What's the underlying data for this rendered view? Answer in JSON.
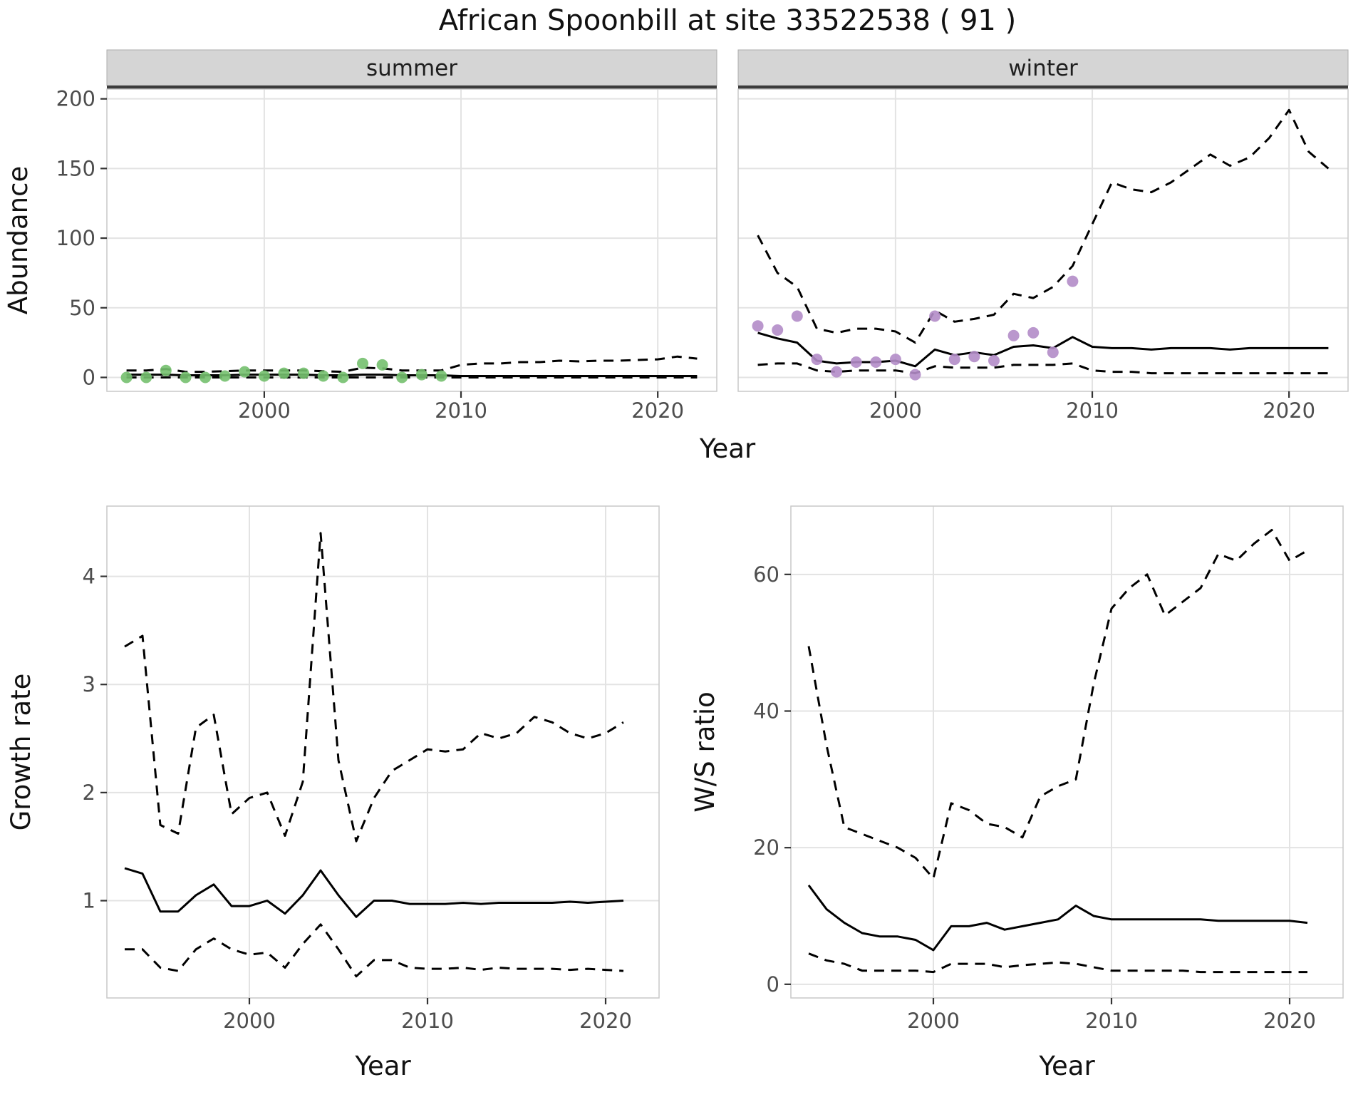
{
  "title": "African Spoonbill at site 33522538 ( 91 )",
  "colors": {
    "summer_point": "#74c06e",
    "winter_point": "#b28cc8",
    "line": "#000000",
    "grid": "#e3e3e3",
    "strip_bg": "#d5d5d5",
    "strip_underline": "#3c3c3c",
    "axis_text": "#4d4d4d",
    "panel_border": "#c9c9c9",
    "tick": "#333333"
  },
  "chart_data": [
    {
      "type": "line",
      "id": "abundance",
      "xlabel": "Year",
      "ylabel": "Abundance",
      "xlim": [
        1992,
        2023
      ],
      "ylim": [
        -10,
        207
      ],
      "xticks": [
        2000,
        2010,
        2020
      ],
      "yticks": [
        0,
        50,
        100,
        150,
        200
      ],
      "legend": "off",
      "grid": "major",
      "facets": [
        {
          "label": "summer",
          "point_color": "#74c06e",
          "fit_years": [
            1993,
            1994,
            1995,
            1996,
            1997,
            1998,
            1999,
            2000,
            2001,
            2002,
            2003,
            2004,
            2005,
            2006,
            2007,
            2008,
            2009,
            2010,
            2011,
            2012,
            2013,
            2014,
            2015,
            2016,
            2017,
            2018,
            2019,
            2020,
            2021,
            2022
          ],
          "median": [
            2,
            2,
            2,
            1.5,
            1.5,
            1.5,
            2,
            2,
            2,
            2,
            1.5,
            1.5,
            2,
            2,
            1.5,
            1.5,
            1.5,
            1,
            1,
            1,
            1,
            1,
            1,
            1,
            1,
            1,
            1,
            1,
            1,
            1
          ],
          "upper": [
            5,
            5,
            6,
            4,
            4,
            4.5,
            5,
            5,
            5,
            5,
            4.5,
            4,
            7,
            6.5,
            5,
            5,
            5,
            9,
            10,
            10,
            11,
            11,
            12,
            11.5,
            12,
            12,
            12.5,
            13,
            15,
            13.5
          ],
          "lower": [
            0,
            0,
            0,
            0,
            0,
            0,
            0,
            0,
            0,
            0,
            0,
            0,
            0,
            0,
            0,
            0,
            0,
            0,
            0,
            0,
            0,
            0,
            0,
            0,
            0,
            0,
            0,
            0,
            0,
            0
          ],
          "obs_years": [
            1993,
            1994,
            1995,
            1996,
            1997,
            1998,
            1999,
            2000,
            2001,
            2002,
            2003,
            2004,
            2005,
            2006,
            2007,
            2008,
            2009
          ],
          "obs_values": [
            0,
            0,
            5,
            0,
            0,
            1,
            4,
            1,
            3,
            3,
            1,
            0,
            10,
            9,
            0,
            2,
            1
          ]
        },
        {
          "label": "winter",
          "point_color": "#b28cc8",
          "fit_years": [
            1993,
            1994,
            1995,
            1996,
            1997,
            1998,
            1999,
            2000,
            2001,
            2002,
            2003,
            2004,
            2005,
            2006,
            2007,
            2008,
            2009,
            2010,
            2011,
            2012,
            2013,
            2014,
            2015,
            2016,
            2017,
            2018,
            2019,
            2020,
            2021,
            2022
          ],
          "median": [
            32,
            28,
            25,
            12,
            10,
            11,
            11,
            12,
            8,
            20,
            16,
            18,
            16,
            22,
            23,
            21,
            29,
            22,
            21,
            21,
            20,
            21,
            21,
            21,
            20,
            21,
            21,
            21,
            21,
            21
          ],
          "upper": [
            102,
            75,
            65,
            35,
            32,
            35,
            35,
            33,
            25,
            48,
            40,
            42,
            45,
            60,
            57,
            65,
            80,
            110,
            140,
            135,
            133,
            140,
            150,
            160,
            152,
            158,
            172,
            192,
            162,
            150
          ],
          "lower": [
            9,
            10,
            10,
            5,
            4,
            5,
            5,
            5,
            3,
            8,
            7,
            7,
            7,
            9,
            9,
            9,
            10,
            5,
            4,
            4,
            3,
            3,
            3,
            3,
            3,
            3,
            3,
            3,
            3,
            3
          ],
          "obs_years": [
            1993,
            1994,
            1995,
            1996,
            1997,
            1998,
            1999,
            2000,
            2001,
            2002,
            2003,
            2004,
            2005,
            2006,
            2007,
            2008,
            2009
          ],
          "obs_values": [
            37,
            34,
            44,
            13,
            4,
            11,
            11,
            13,
            2,
            44,
            13,
            15,
            12,
            30,
            32,
            18,
            69
          ]
        }
      ]
    },
    {
      "type": "line",
      "id": "growth_rate",
      "xlabel": "Year",
      "ylabel": "Growth rate",
      "xlim": [
        1992,
        2023
      ],
      "ylim": [
        0.1,
        4.65
      ],
      "xticks": [
        2000,
        2010,
        2020
      ],
      "yticks": [
        1,
        2,
        3,
        4
      ],
      "legend": "off",
      "grid": "major",
      "years": [
        1993,
        1994,
        1995,
        1996,
        1997,
        1998,
        1999,
        2000,
        2001,
        2002,
        2003,
        2004,
        2005,
        2006,
        2007,
        2008,
        2009,
        2010,
        2011,
        2012,
        2013,
        2014,
        2015,
        2016,
        2017,
        2018,
        2019,
        2020,
        2021
      ],
      "median": [
        1.3,
        1.25,
        0.9,
        0.9,
        1.05,
        1.15,
        0.95,
        0.95,
        1.0,
        0.88,
        1.05,
        1.28,
        1.05,
        0.85,
        1.0,
        1.0,
        0.97,
        0.97,
        0.97,
        0.98,
        0.97,
        0.98,
        0.98,
        0.98,
        0.98,
        0.99,
        0.98,
        0.99,
        1.0
      ],
      "upper": [
        3.35,
        3.45,
        1.7,
        1.62,
        2.6,
        2.72,
        1.8,
        1.95,
        2.0,
        1.6,
        2.1,
        4.4,
        2.3,
        1.55,
        1.95,
        2.2,
        2.3,
        2.4,
        2.38,
        2.4,
        2.55,
        2.5,
        2.55,
        2.7,
        2.65,
        2.55,
        2.5,
        2.55,
        2.65
      ],
      "lower": [
        0.55,
        0.55,
        0.38,
        0.35,
        0.55,
        0.65,
        0.55,
        0.5,
        0.52,
        0.38,
        0.6,
        0.78,
        0.55,
        0.3,
        0.45,
        0.45,
        0.38,
        0.37,
        0.37,
        0.38,
        0.36,
        0.38,
        0.37,
        0.37,
        0.37,
        0.36,
        0.37,
        0.36,
        0.35
      ]
    },
    {
      "type": "line",
      "id": "ws_ratio",
      "xlabel": "Year",
      "ylabel": "W/S ratio",
      "xlim": [
        1992,
        2023
      ],
      "ylim": [
        -2,
        70
      ],
      "xticks": [
        2000,
        2010,
        2020
      ],
      "yticks": [
        0,
        20,
        40,
        60
      ],
      "legend": "off",
      "grid": "major",
      "years": [
        1993,
        1994,
        1995,
        1996,
        1997,
        1998,
        1999,
        2000,
        2001,
        2002,
        2003,
        2004,
        2005,
        2006,
        2007,
        2008,
        2009,
        2010,
        2011,
        2012,
        2013,
        2014,
        2015,
        2016,
        2017,
        2018,
        2019,
        2020,
        2021
      ],
      "median": [
        14.5,
        11,
        9,
        7.5,
        7,
        7,
        6.5,
        5,
        8.5,
        8.5,
        9,
        8,
        8.5,
        9,
        9.5,
        11.5,
        10,
        9.5,
        9.5,
        9.5,
        9.5,
        9.5,
        9.5,
        9.3,
        9.3,
        9.3,
        9.3,
        9.3,
        9
      ],
      "upper": [
        49.5,
        35,
        23,
        22,
        21,
        20,
        18.5,
        15.5,
        26.5,
        25.5,
        23.5,
        23,
        21.5,
        27.5,
        29,
        30,
        44,
        55,
        58,
        60,
        54,
        56,
        58,
        63,
        62,
        64.5,
        66.5,
        62,
        63.5
      ],
      "lower": [
        4.5,
        3.5,
        3,
        2,
        2,
        2,
        2,
        1.8,
        3,
        3,
        3,
        2.5,
        2.8,
        3,
        3.2,
        3,
        2.5,
        2,
        2,
        2,
        2,
        2,
        1.8,
        1.8,
        1.8,
        1.8,
        1.8,
        1.8,
        1.8
      ]
    }
  ]
}
